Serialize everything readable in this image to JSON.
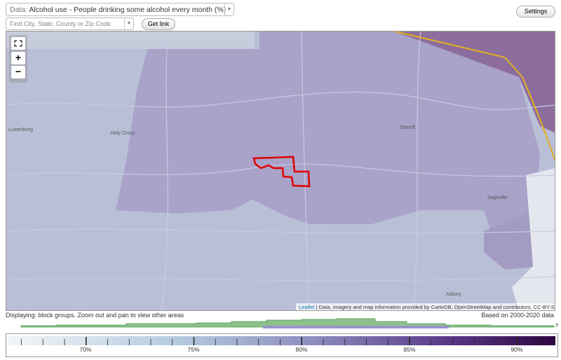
{
  "header": {
    "data_label": "Data:",
    "data_select": "Alcohol use - People drinking some alcohol every month (%)",
    "search_placeholder": "Find City, State, County or Zip Code",
    "get_link": "Get link",
    "settings": "Settings"
  },
  "map": {
    "zoom_in": "+",
    "zoom_out": "−",
    "places": [
      "Luxemburg",
      "Holy Cross",
      "Sherrill",
      "Sageville",
      "Asbury"
    ],
    "attribution_leaflet": "Leaflet",
    "attribution_rest": " | Data, imagery and map information provided by CartoDB, OpenStreetMap and contributors, CC-BY-SA"
  },
  "footer": {
    "displaying": "Displaying: block groups. Zoom out and pan to view other areas",
    "based_on": "Based on 2000-2020 data",
    "help": "?",
    "legend_labels": [
      "70%",
      "75%",
      "80%",
      "85%",
      "90%"
    ]
  }
}
